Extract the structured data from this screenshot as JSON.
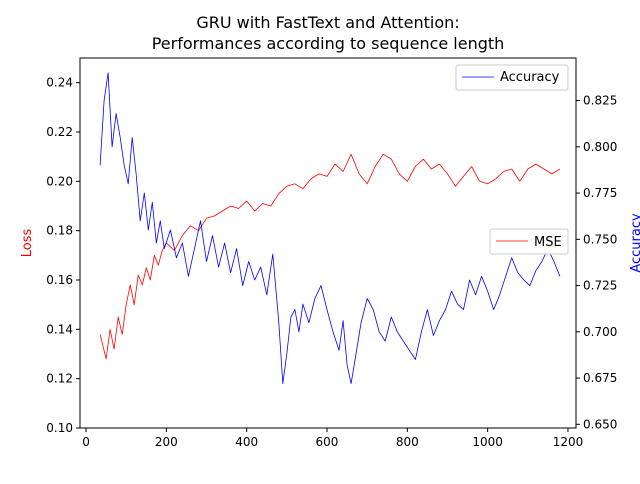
{
  "chart_data": {
    "type": "line",
    "title_line1": "GRU with FastText and Attention:",
    "title_line2": "Performances according to sequence length",
    "xlabel": "",
    "ylabel_left": "Loss",
    "ylabel_right": "Accuracy",
    "xlim": [
      -15,
      1220
    ],
    "ylim_left": [
      0.1,
      0.25
    ],
    "ylim_right": [
      0.648,
      0.848
    ],
    "x_ticks": [
      0,
      200,
      400,
      600,
      800,
      1000,
      1200
    ],
    "y_left_ticks": [
      0.1,
      0.12,
      0.14,
      0.16,
      0.18,
      0.2,
      0.22,
      0.24
    ],
    "y_right_ticks": [
      0.65,
      0.675,
      0.7,
      0.725,
      0.75,
      0.775,
      0.8,
      0.825
    ],
    "grid": false,
    "colors": {
      "loss": "#ff0000",
      "accuracy": "#0000ff",
      "left_label": "#ff0000",
      "right_label": "#0000ff"
    },
    "legend_accuracy": {
      "label": "Accuracy",
      "placement": "top-right"
    },
    "legend_loss": {
      "label": "MSE",
      "placement": "center-right"
    },
    "series": [
      {
        "name": "MSE",
        "axis": "left",
        "x": [
          35,
          50,
          60,
          70,
          80,
          90,
          100,
          110,
          120,
          130,
          140,
          150,
          160,
          170,
          180,
          190,
          200,
          220,
          240,
          260,
          280,
          300,
          320,
          340,
          360,
          380,
          400,
          420,
          440,
          460,
          480,
          500,
          520,
          540,
          560,
          580,
          600,
          620,
          640,
          660,
          680,
          700,
          720,
          740,
          760,
          780,
          800,
          820,
          840,
          860,
          880,
          900,
          920,
          940,
          960,
          980,
          1000,
          1020,
          1040,
          1060,
          1080,
          1100,
          1120,
          1140,
          1160,
          1180
        ],
        "y": [
          0.138,
          0.128,
          0.14,
          0.132,
          0.145,
          0.138,
          0.15,
          0.158,
          0.15,
          0.162,
          0.158,
          0.165,
          0.16,
          0.17,
          0.166,
          0.172,
          0.175,
          0.172,
          0.178,
          0.182,
          0.18,
          0.185,
          0.186,
          0.188,
          0.19,
          0.189,
          0.192,
          0.188,
          0.191,
          0.19,
          0.195,
          0.198,
          0.199,
          0.197,
          0.201,
          0.203,
          0.202,
          0.207,
          0.204,
          0.211,
          0.203,
          0.199,
          0.206,
          0.211,
          0.209,
          0.203,
          0.2,
          0.206,
          0.209,
          0.205,
          0.207,
          0.203,
          0.198,
          0.202,
          0.206,
          0.2,
          0.199,
          0.201,
          0.204,
          0.205,
          0.2,
          0.205,
          0.207,
          0.205,
          0.203,
          0.205
        ]
      },
      {
        "name": "Accuracy",
        "axis": "right",
        "x": [
          35,
          45,
          55,
          65,
          75,
          85,
          95,
          105,
          115,
          125,
          135,
          145,
          155,
          165,
          175,
          185,
          195,
          210,
          225,
          240,
          255,
          270,
          285,
          300,
          315,
          330,
          345,
          360,
          375,
          390,
          405,
          420,
          435,
          450,
          465,
          480,
          490,
          500,
          510,
          520,
          530,
          540,
          555,
          570,
          585,
          600,
          615,
          630,
          640,
          650,
          660,
          670,
          685,
          700,
          715,
          730,
          745,
          760,
          775,
          790,
          805,
          820,
          835,
          850,
          865,
          880,
          895,
          910,
          925,
          940,
          955,
          970,
          985,
          1000,
          1015,
          1030,
          1045,
          1060,
          1075,
          1090,
          1105,
          1120,
          1135,
          1150,
          1165,
          1180
        ],
        "y": [
          0.79,
          0.825,
          0.84,
          0.8,
          0.818,
          0.805,
          0.79,
          0.78,
          0.805,
          0.785,
          0.76,
          0.775,
          0.755,
          0.77,
          0.748,
          0.76,
          0.745,
          0.755,
          0.74,
          0.748,
          0.73,
          0.745,
          0.76,
          0.738,
          0.752,
          0.735,
          0.748,
          0.732,
          0.745,
          0.725,
          0.738,
          0.728,
          0.735,
          0.72,
          0.742,
          0.705,
          0.672,
          0.688,
          0.708,
          0.712,
          0.7,
          0.715,
          0.705,
          0.718,
          0.725,
          0.712,
          0.7,
          0.69,
          0.706,
          0.682,
          0.672,
          0.685,
          0.705,
          0.718,
          0.712,
          0.7,
          0.695,
          0.708,
          0.7,
          0.695,
          0.69,
          0.685,
          0.7,
          0.712,
          0.698,
          0.706,
          0.712,
          0.722,
          0.715,
          0.712,
          0.728,
          0.72,
          0.73,
          0.722,
          0.712,
          0.72,
          0.73,
          0.74,
          0.732,
          0.728,
          0.725,
          0.733,
          0.738,
          0.745,
          0.738,
          0.73
        ]
      }
    ]
  }
}
